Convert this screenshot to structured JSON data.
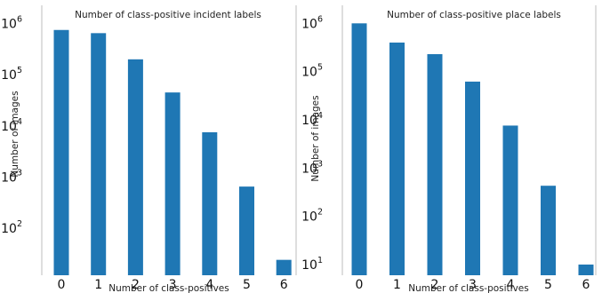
{
  "chart_data": [
    {
      "type": "bar",
      "title": "Number of class-positive incident labels",
      "xlabel": "Number of class-positives",
      "ylabel": "Number of images",
      "yscale": "log",
      "categories": [
        "0",
        "1",
        "2",
        "3",
        "4",
        "5",
        "6"
      ],
      "values": [
        750000,
        650000,
        200000,
        45000,
        7500,
        650,
        24
      ],
      "ylim": [
        12,
        1200000
      ],
      "yticks": [
        {
          "base": "10",
          "exp": "2",
          "value": 100
        },
        {
          "base": "10",
          "exp": "3",
          "value": 1000
        },
        {
          "base": "10",
          "exp": "4",
          "value": 10000
        },
        {
          "base": "10",
          "exp": "5",
          "value": 100000
        },
        {
          "base": "10",
          "exp": "6",
          "value": 1000000
        }
      ],
      "bar_color": "#1f77b4",
      "grid": false
    },
    {
      "type": "bar",
      "title": "Number of class-positive place labels",
      "xlabel": "Number of class-positives",
      "ylabel": "Number of images",
      "yscale": "log",
      "categories": [
        "0",
        "1",
        "2",
        "3",
        "4",
        "5",
        "6"
      ],
      "values": [
        1000000,
        400000,
        230000,
        62000,
        7600,
        430,
        10
      ],
      "ylim": [
        6,
        1200000
      ],
      "yticks": [
        {
          "base": "10",
          "exp": "1",
          "value": 10
        },
        {
          "base": "10",
          "exp": "2",
          "value": 100
        },
        {
          "base": "10",
          "exp": "3",
          "value": 1000
        },
        {
          "base": "10",
          "exp": "4",
          "value": 10000
        },
        {
          "base": "10",
          "exp": "5",
          "value": 100000
        },
        {
          "base": "10",
          "exp": "6",
          "value": 1000000
        }
      ],
      "bar_color": "#1f77b4",
      "grid": false
    }
  ]
}
